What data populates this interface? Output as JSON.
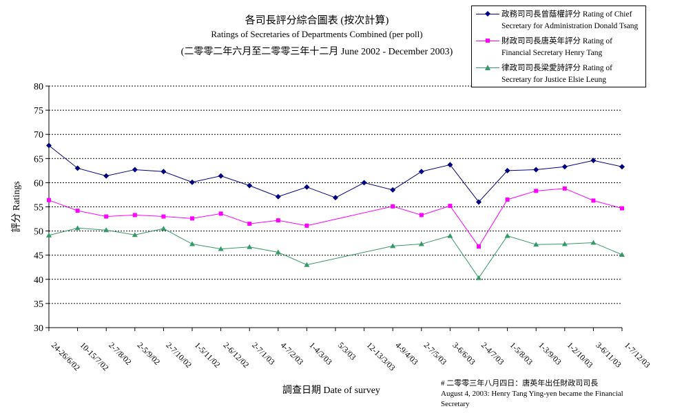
{
  "chart_data": {
    "type": "line",
    "title": "各司長評分綜合圖表 (按次計算)",
    "subtitle": "Ratings of Secretaries of Departments Combined (per poll)",
    "subtitle2": "(二零零二年六月至二零零三年十二月 June 2002 - December 2003)",
    "xlabel": "調查日期 Date of survey",
    "ylabel": "評分 Ratings",
    "ylim": [
      30,
      80
    ],
    "yticks": [
      30,
      35,
      40,
      45,
      50,
      55,
      60,
      65,
      70,
      75,
      80
    ],
    "grid": true,
    "legend_position": "top-right",
    "categories": [
      "24-26/6/02",
      "10-15/7/02",
      "2-7/8/02",
      "2-5/9/02",
      "2-7/10/02",
      "1-5/11/02",
      "2-6/12/02",
      "2-7/1/03",
      "4-7/2/03",
      "1-4/3/03",
      "5/3/03",
      "12-13/3/03",
      "4-9/4/03",
      "2-7/5/03",
      "3-6/6/03",
      "2-4/7/03",
      "1-5/8/03",
      "1-3/9/03",
      "1-2/10/03",
      "3-6/11/03",
      "1-7/12/03"
    ],
    "series": [
      {
        "name": "政務司司長曾蔭權評分 Rating of Chief Secretary for Administration Donald Tsang",
        "color": "#000080",
        "marker": "diamond",
        "values": [
          67.7,
          63.0,
          61.4,
          62.7,
          62.3,
          60.1,
          61.4,
          59.4,
          57.1,
          59.1,
          56.9,
          60.0,
          58.5,
          62.3,
          63.7,
          56.0,
          62.5,
          62.7,
          63.3,
          64.6,
          63.3
        ]
      },
      {
        "name": "財政司司長唐英年評分 Rating of Financial Secretary Henry Tang",
        "color": "#ff00ff",
        "marker": "square",
        "values": [
          56.4,
          54.2,
          53.0,
          53.3,
          53.0,
          52.6,
          53.6,
          51.5,
          52.2,
          51.1,
          null,
          null,
          55.1,
          53.3,
          55.2,
          46.8,
          56.5,
          58.3,
          58.8,
          56.3,
          54.7
        ]
      },
      {
        "name": "律政司司長梁愛詩評分 Rating of Secretary for Justice Elsie Leung",
        "color": "#339966",
        "marker": "triangle",
        "values": [
          49.1,
          50.6,
          50.2,
          49.2,
          50.5,
          47.3,
          46.3,
          46.7,
          45.6,
          43.0,
          null,
          null,
          46.9,
          47.3,
          49.0,
          40.3,
          49.0,
          47.2,
          47.3,
          47.6,
          45.1
        ]
      }
    ],
    "footnote": [
      "# 二零零三年八月四日：唐英年出任財政司司長",
      "August 4, 2003: Henry Tang Ying-yen became the Financial",
      "Secretary"
    ]
  },
  "legend": {
    "items": [
      {
        "line1": "政務司司長曾蔭權評分 Rating of Chief",
        "line2": "Secretary for Administration Donald Tsang",
        "color": "#000080",
        "marker": "diamond"
      },
      {
        "line1": "財政司司長唐英年評分 Rating of",
        "line2": "Financial Secretary Henry Tang",
        "color": "#ff00ff",
        "marker": "square"
      },
      {
        "line1": "律政司司長梁愛詩評分 Rating of",
        "line2": "Secretary for Justice Elsie Leung",
        "color": "#339966",
        "marker": "triangle"
      }
    ]
  }
}
